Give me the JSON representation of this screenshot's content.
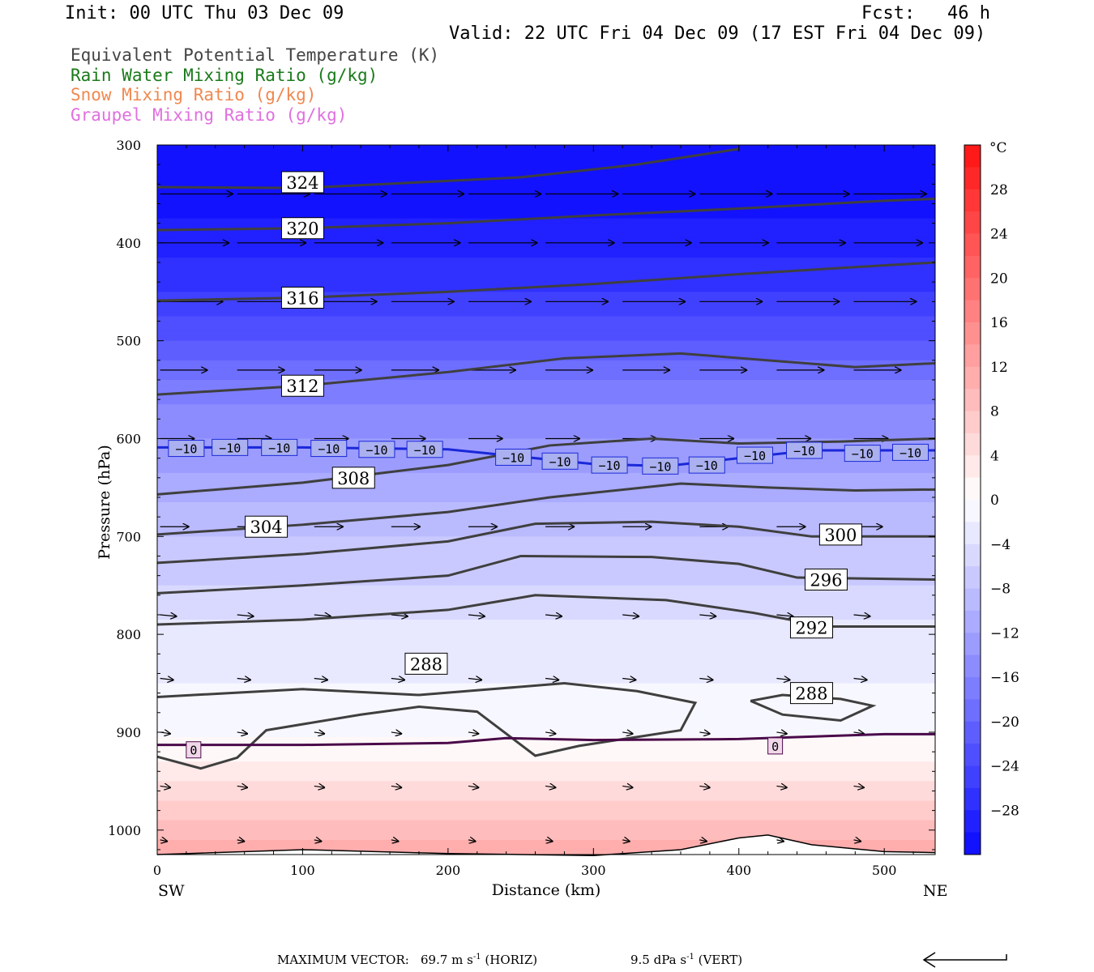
{
  "header": {
    "init": "Init: 00 UTC Thu 03 Dec 09",
    "fcst": "Fcst:   46 h",
    "valid": "Valid: 22 UTC Fri 04 Dec 09 (17 EST Fri 04 Dec 09)"
  },
  "legend": [
    {
      "label": "Equivalent Potential Temperature (K)",
      "color": "#444444"
    },
    {
      "label": "Rain Water Mixing Ratio (g/kg)",
      "color": "#1a7a1a"
    },
    {
      "label": "Snow Mixing Ratio (g/kg)",
      "color": "#f08850"
    },
    {
      "label": "Graupel Mixing Ratio (g/kg)",
      "color": "#e070e0"
    }
  ],
  "chart_data": {
    "type": "contour",
    "xlabel": "Distance (km)",
    "ylabel": "Pressure (hPa)",
    "xlim": [
      0,
      535
    ],
    "ylim": [
      1025,
      300
    ],
    "x_ticks": [
      0,
      100,
      200,
      300,
      400,
      500
    ],
    "y_ticks": [
      300,
      400,
      500,
      600,
      700,
      800,
      900,
      1000
    ],
    "x_end_labels": {
      "left": "SW",
      "right": "NE"
    },
    "colorbar": {
      "unit": "°C",
      "tick_labels": [
        "28",
        "24",
        "20",
        "16",
        "12",
        "8",
        "4",
        "0",
        "−4",
        "−8",
        "−12",
        "−16",
        "−20",
        "−24",
        "−28"
      ],
      "tick_values": [
        28,
        24,
        20,
        16,
        12,
        8,
        4,
        0,
        -4,
        -8,
        -12,
        -16,
        -20,
        -24,
        -28
      ],
      "range": [
        -32,
        32
      ]
    },
    "temperature_field": [
      {
        "p": 300,
        "t": -32
      },
      {
        "p": 350,
        "t": -31
      },
      {
        "p": 400,
        "t": -29
      },
      {
        "p": 450,
        "t": -26
      },
      {
        "p": 500,
        "t": -22
      },
      {
        "p": 550,
        "t": -17
      },
      {
        "p": 600,
        "t": -14
      },
      {
        "p": 650,
        "t": -11
      },
      {
        "p": 700,
        "t": -8
      },
      {
        "p": 750,
        "t": -6
      },
      {
        "p": 800,
        "t": -3
      },
      {
        "p": 850,
        "t": -2
      },
      {
        "p": 900,
        "t": -0.5
      },
      {
        "p": 930,
        "t": 2
      },
      {
        "p": 960,
        "t": 5
      },
      {
        "p": 990,
        "t": 8
      },
      {
        "p": 1020,
        "t": 11
      }
    ],
    "theta_e_contours": [
      {
        "level": "324",
        "label_at": [
          100,
          338
        ],
        "points": [
          [
            0,
            343
          ],
          [
            100,
            344
          ],
          [
            250,
            333
          ],
          [
            330,
            320
          ],
          [
            400,
            304
          ]
        ]
      },
      {
        "level": "320",
        "label_at": [
          100,
          385
        ],
        "points": [
          [
            0,
            387
          ],
          [
            100,
            385
          ],
          [
            200,
            380
          ],
          [
            300,
            372
          ],
          [
            400,
            365
          ],
          [
            500,
            357
          ],
          [
            535,
            355
          ]
        ]
      },
      {
        "level": "316",
        "label_at": [
          100,
          456
        ],
        "points": [
          [
            0,
            459
          ],
          [
            100,
            456
          ],
          [
            200,
            450
          ],
          [
            300,
            442
          ],
          [
            400,
            432
          ],
          [
            500,
            423
          ],
          [
            535,
            420
          ]
        ]
      },
      {
        "level": "312",
        "label_at": [
          100,
          546
        ],
        "points": [
          [
            0,
            555
          ],
          [
            100,
            546
          ],
          [
            200,
            532
          ],
          [
            280,
            518
          ],
          [
            360,
            513
          ],
          [
            420,
            520
          ],
          [
            480,
            527
          ],
          [
            535,
            523
          ]
        ]
      },
      {
        "level": "308",
        "label_at": [
          135,
          640
        ],
        "points": [
          [
            0,
            657
          ],
          [
            100,
            645
          ],
          [
            200,
            627
          ],
          [
            270,
            607
          ],
          [
            340,
            600
          ],
          [
            400,
            605
          ],
          [
            470,
            603
          ],
          [
            535,
            600
          ]
        ]
      },
      {
        "level": "304",
        "label_at": [
          75,
          690
        ],
        "points": [
          [
            0,
            698
          ],
          [
            100,
            688
          ],
          [
            200,
            675
          ],
          [
            270,
            660
          ],
          [
            360,
            646
          ],
          [
            420,
            650
          ],
          [
            480,
            653
          ],
          [
            535,
            652
          ]
        ]
      },
      {
        "level": "300",
        "label_at": [
          470,
          698
        ],
        "points": [
          [
            0,
            727
          ],
          [
            100,
            718
          ],
          [
            200,
            705
          ],
          [
            260,
            687
          ],
          [
            340,
            685
          ],
          [
            400,
            690
          ],
          [
            450,
            700
          ],
          [
            535,
            700
          ]
        ]
      },
      {
        "level": "296",
        "label_at": [
          460,
          744
        ],
        "points": [
          [
            0,
            758
          ],
          [
            100,
            750
          ],
          [
            200,
            740
          ],
          [
            250,
            720
          ],
          [
            340,
            721
          ],
          [
            400,
            728
          ],
          [
            440,
            742
          ],
          [
            535,
            744
          ]
        ]
      },
      {
        "level": "292",
        "label_at": [
          450,
          793
        ],
        "points": [
          [
            0,
            790
          ],
          [
            100,
            785
          ],
          [
            200,
            775
          ],
          [
            260,
            760
          ],
          [
            350,
            765
          ],
          [
            410,
            778
          ],
          [
            460,
            792
          ],
          [
            535,
            792
          ]
        ]
      },
      {
        "level": "288",
        "label_at": [
          185,
          830
        ],
        "points": [
          [
            0,
            864
          ],
          [
            100,
            856
          ],
          [
            180,
            862
          ],
          [
            230,
            856
          ],
          [
            280,
            850
          ],
          [
            330,
            858
          ],
          [
            370,
            870
          ],
          [
            360,
            898
          ],
          [
            290,
            914
          ],
          [
            260,
            924
          ],
          [
            220,
            879
          ],
          [
            180,
            874
          ],
          [
            140,
            882
          ],
          [
            75,
            898
          ],
          [
            55,
            926
          ],
          [
            30,
            937
          ],
          [
            0,
            925
          ]
        ]
      },
      {
        "level": "288",
        "label_at": [
          450,
          860
        ],
        "points": [
          [
            408,
            868
          ],
          [
            430,
            862
          ],
          [
            470,
            866
          ],
          [
            492,
            873
          ],
          [
            470,
            888
          ],
          [
            430,
            882
          ],
          [
            408,
            868
          ]
        ]
      }
    ],
    "isotherms": [
      {
        "level": "−10",
        "color": "#1a28d8",
        "label_at": [
          [
            20,
            610
          ],
          [
            50,
            609
          ],
          [
            84,
            609
          ],
          [
            118,
            610
          ],
          [
            151,
            611
          ],
          [
            184,
            611
          ],
          [
            245,
            619
          ],
          [
            277,
            623
          ],
          [
            311,
            627
          ],
          [
            346,
            628
          ],
          [
            378,
            627
          ],
          [
            411,
            617
          ],
          [
            445,
            612
          ],
          [
            485,
            615
          ],
          [
            518,
            614
          ]
        ],
        "points": [
          [
            0,
            609
          ],
          [
            100,
            609
          ],
          [
            200,
            611
          ],
          [
            240,
            617
          ],
          [
            300,
            626
          ],
          [
            350,
            628
          ],
          [
            400,
            620
          ],
          [
            450,
            612
          ],
          [
            535,
            612
          ]
        ]
      },
      {
        "level": "0",
        "color": "#4a0a4a",
        "label_at": [
          [
            25,
            918
          ],
          [
            425,
            914
          ]
        ],
        "points": [
          [
            0,
            913
          ],
          [
            100,
            913
          ],
          [
            200,
            911
          ],
          [
            240,
            906
          ],
          [
            300,
            908
          ],
          [
            400,
            907
          ],
          [
            500,
            902
          ],
          [
            535,
            902
          ]
        ]
      }
    ],
    "surface": [
      [
        0,
        1025
      ],
      [
        100,
        1020
      ],
      [
        200,
        1024
      ],
      [
        300,
        1026
      ],
      [
        360,
        1020
      ],
      [
        400,
        1008
      ],
      [
        420,
        1005
      ],
      [
        450,
        1015
      ],
      [
        500,
        1022
      ],
      [
        535,
        1023
      ]
    ],
    "wind_vectors": [
      {
        "p": 350,
        "u": 0.95
      },
      {
        "p": 400,
        "u": 0.9
      },
      {
        "p": 460,
        "u": 0.82
      },
      {
        "p": 530,
        "u": 0.62
      },
      {
        "p": 600,
        "u": 0.45
      },
      {
        "p": 690,
        "u": 0.38
      },
      {
        "p": 780,
        "u": 0.22
      },
      {
        "p": 845,
        "u": 0.18
      },
      {
        "p": 900,
        "u": 0.14
      },
      {
        "p": 955,
        "u": 0.14
      },
      {
        "p": 1010,
        "u": 0.1
      }
    ]
  },
  "footer": {
    "max_vector_label": "MAXIMUM VECTOR:",
    "horiz_value": "69.7 m s",
    "horiz_exp": "-1",
    "horiz_unit": "(HORIZ)",
    "vert_value": "9.5 dPa s",
    "vert_exp": "-1",
    "vert_unit": "(VERT)"
  }
}
